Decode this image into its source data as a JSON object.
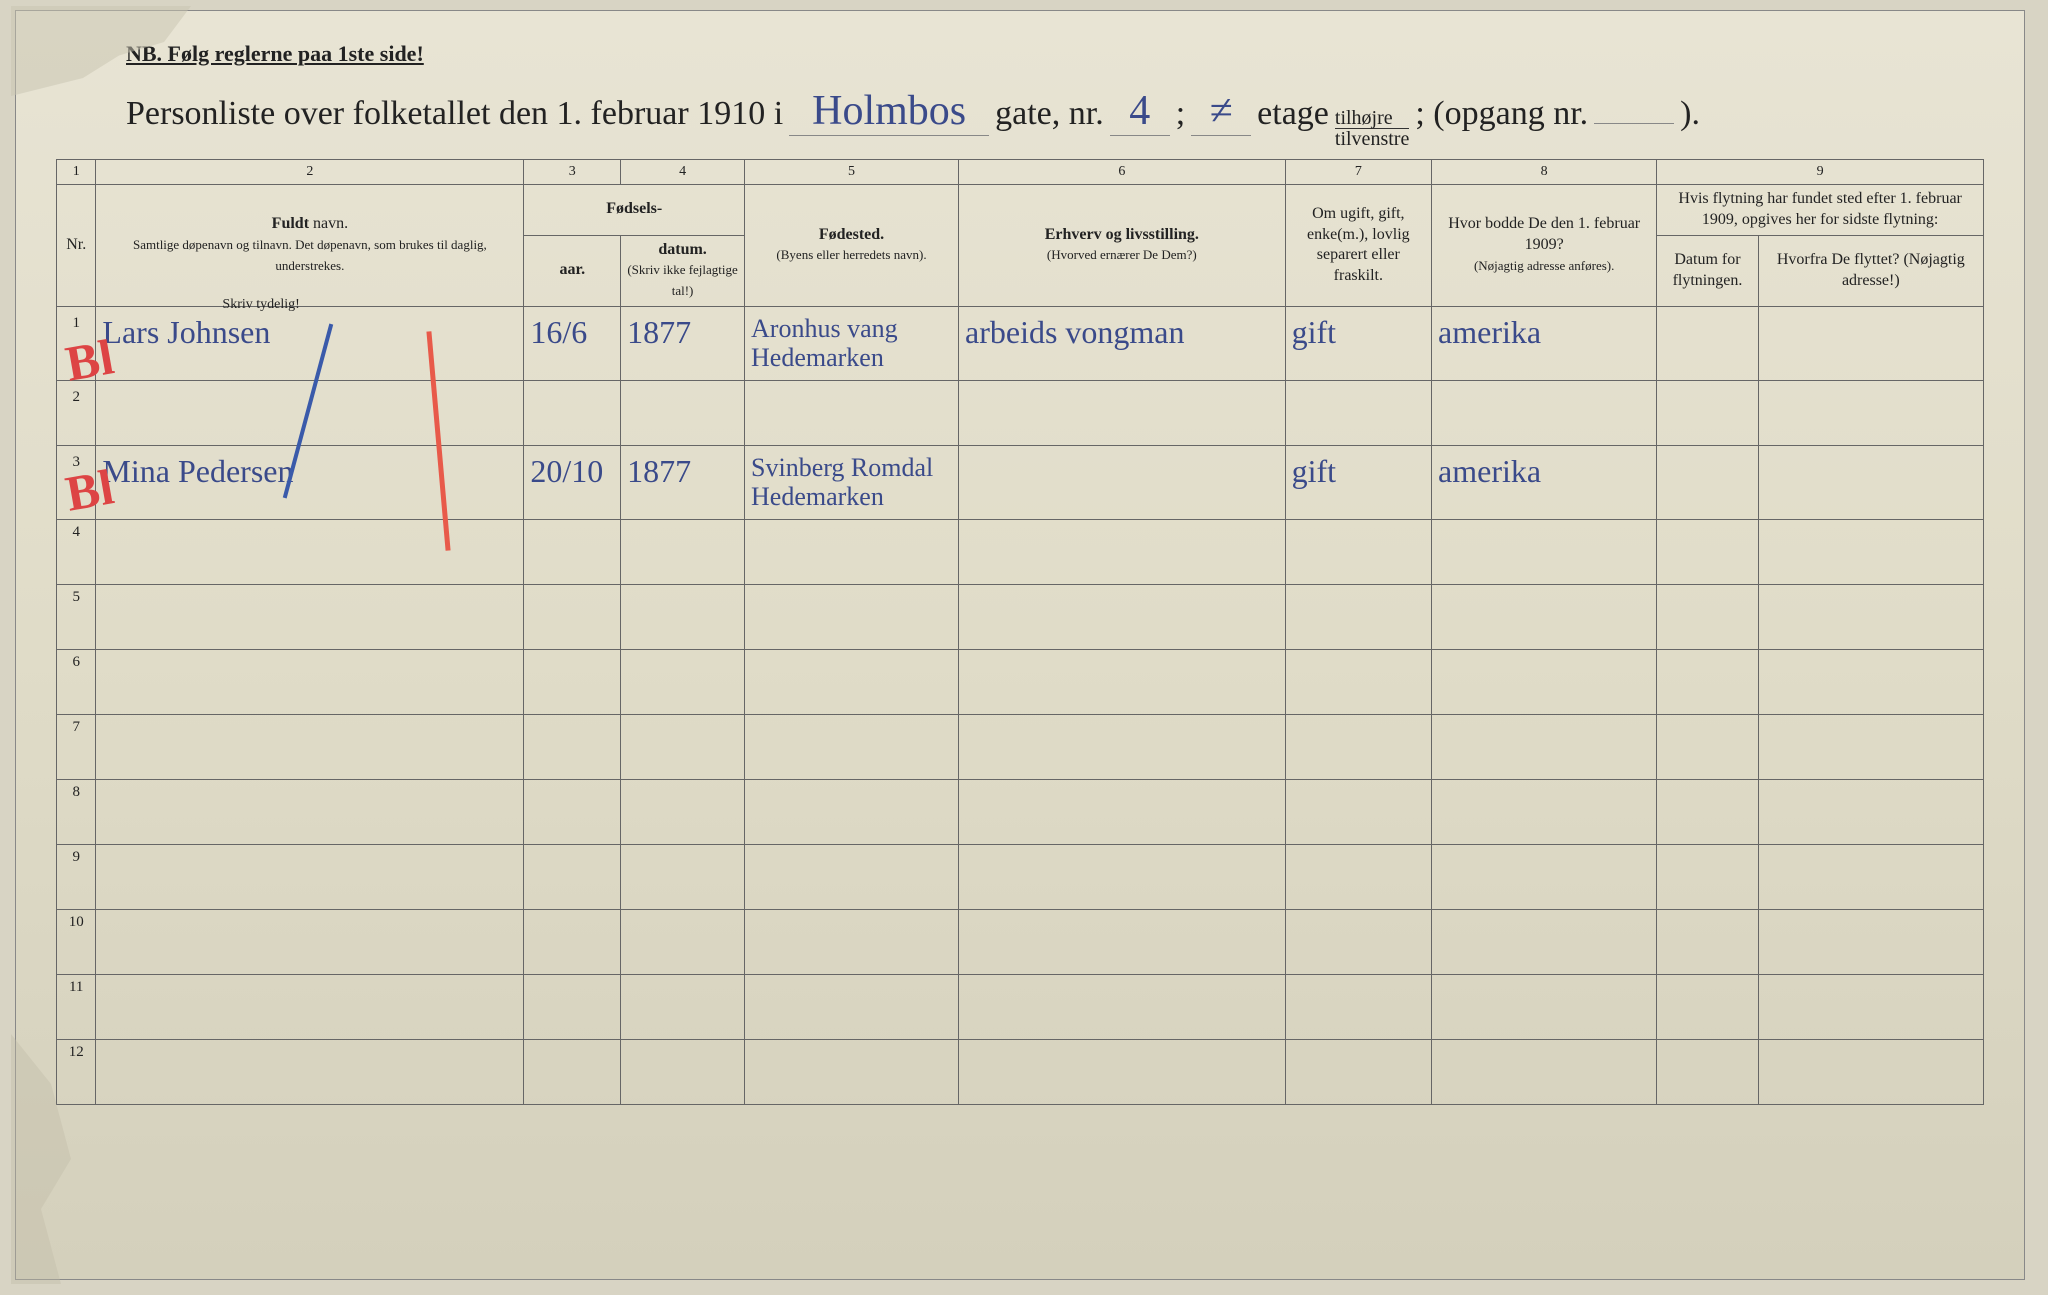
{
  "document": {
    "notice": "NB.  Følg reglerne paa 1ste side!",
    "header": {
      "prefix": "Personliste over folketallet den 1. februar 1910 i",
      "street": "Holmbos",
      "word_gate": "gate, nr.",
      "house_nr": "4",
      "semicolon": " ; ",
      "etage_nr": "≠",
      "word_etage": "etage",
      "tilhojre": "tilhøjre",
      "tilvenstre": "tilvenstre",
      "opgang": "; (opgang nr.",
      "opgang_nr": "",
      "close": ")."
    },
    "column_numbers": [
      "1",
      "2",
      "3",
      "4",
      "5",
      "6",
      "7",
      "8",
      "9"
    ],
    "columns": {
      "nr": "Nr.",
      "name_bold": "Fuldt",
      "name_rest": " navn.",
      "name_sub": "Samtlige døpenavn og tilnavn. Det døpenavn, som brukes til daglig, understrekes.",
      "birth_header": "Fødsels-",
      "year": "aar.",
      "date": "datum.",
      "birth_note": "(Skriv ikke fejlagtige tal!)",
      "birthplace": "Fødested.",
      "birthplace_sub": "(Byens eller herredets navn).",
      "occupation": "Erhverv og livsstilling.",
      "occupation_sub": "(Hvorved ernærer De Dem?)",
      "marital": "Om ugift, gift, enke(m.), lovlig separert eller fraskilt.",
      "residence_1909": "Hvor bodde De den 1. februar 1909?",
      "residence_sub": "(Nøjagtig adresse anføres).",
      "move_header": "Hvis flytning har fundet sted efter 1. februar 1909, opgives her for sidste flytning:",
      "move_date": "Datum for flytningen.",
      "move_from": "Hvorfra De flyttet? (Nøjagtig adresse!)"
    },
    "skriv_tydelig": "Skriv tydelig!",
    "rows": [
      {
        "nr": "1",
        "name": "Lars Johnsen",
        "year": "16/6",
        "date": "1877",
        "birthplace": "Aronhus vang Hedemarken",
        "occupation": "arbeids vongman",
        "marital": "gift",
        "residence": "amerika",
        "move_date": "",
        "move_from": ""
      },
      {
        "nr": "2",
        "name": "",
        "year": "",
        "date": "",
        "birthplace": "",
        "occupation": "",
        "marital": "",
        "residence": "",
        "move_date": "",
        "move_from": ""
      },
      {
        "nr": "3",
        "name": "Mina Pedersen",
        "year": "20/10",
        "date": "1877",
        "birthplace": "Svinberg Romdal Hedemarken",
        "occupation": "",
        "marital": "gift",
        "residence": "amerika",
        "move_date": "",
        "move_from": ""
      }
    ],
    "empty_row_numbers": [
      "4",
      "5",
      "6",
      "7",
      "8",
      "9",
      "10",
      "11",
      "12"
    ]
  },
  "styling": {
    "paper_bg_top": "#e8e4d4",
    "paper_bg_bottom": "#d4d0bc",
    "ink_color": "#3a4a8a",
    "print_color": "#222222",
    "border_color": "#666666",
    "red_mark_color": "#d44444",
    "blue_slash_color": "#3a5aaa",
    "handwriting_font": "Brush Script MT, cursive",
    "print_font": "Georgia, Times New Roman, serif",
    "header_fontsize_pt": 26,
    "handwriting_fontsize_pt": 24,
    "column_header_fontsize_pt": 12
  }
}
